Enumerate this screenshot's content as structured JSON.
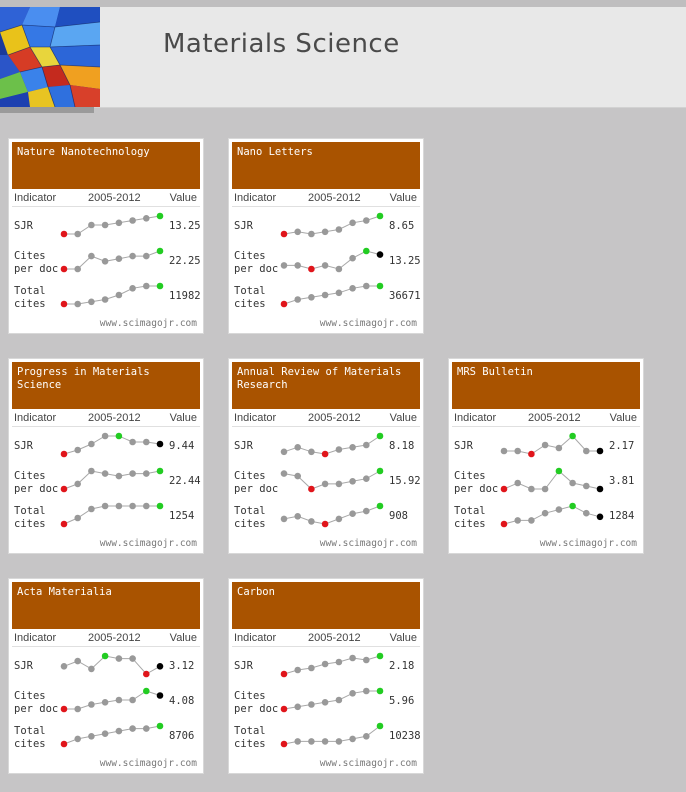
{
  "page": {
    "title": "Materials Science"
  },
  "columns": {
    "indicator": "Indicator",
    "period": "2005-2012",
    "value": "Value"
  },
  "row_labels": {
    "sjr": "SJR",
    "cites_line1": "Cites",
    "cites_line2": "per doc",
    "total_line1": "Total",
    "total_line2": "cites"
  },
  "footer": "www.scimagojr.com",
  "colors": {
    "header": "#a95300",
    "point": "#999999",
    "min": "#e0151b",
    "max": "#22cc22",
    "last": "#000000"
  },
  "journals": [
    {
      "name": "Nature Nanotechnology",
      "sjr": {
        "value": "13.25",
        "trend": [
          2,
          2,
          6,
          6,
          7,
          8,
          9,
          10
        ]
      },
      "cites": {
        "value": "22.25",
        "trend": [
          2,
          2,
          7,
          5,
          6,
          7,
          7,
          9
        ]
      },
      "total": {
        "value": "11982",
        "trend": [
          1,
          1,
          2,
          3,
          5,
          8,
          9,
          9
        ]
      }
    },
    {
      "name": "Nano Letters",
      "sjr": {
        "value": "8.65",
        "trend": [
          2,
          3,
          2,
          3,
          4,
          7,
          8,
          10
        ]
      },
      "cites": {
        "value": "13.25",
        "trend": [
          5,
          5,
          4,
          5,
          4,
          7,
          9,
          8
        ]
      },
      "total": {
        "value": "36671",
        "trend": [
          1,
          3,
          4,
          5,
          6,
          8,
          9,
          9
        ]
      }
    },
    {
      "name": "Progress in Materials Science",
      "sjr": {
        "value": "9.44",
        "trend": [
          1,
          3,
          6,
          10,
          10,
          7,
          7,
          6
        ]
      },
      "cites": {
        "value": "22.44",
        "trend": [
          1,
          3,
          8,
          7,
          6,
          7,
          7,
          8
        ]
      },
      "total": {
        "value": "1254",
        "trend": [
          1,
          3,
          6,
          7,
          7,
          7,
          7,
          7
        ]
      }
    },
    {
      "name": "Annual Review of Materials Research",
      "sjr": {
        "value": "8.18",
        "trend": [
          3,
          5,
          3,
          2,
          4,
          5,
          6,
          10
        ]
      },
      "cites": {
        "value": "15.92",
        "trend": [
          7,
          6,
          1,
          3,
          3,
          4,
          5,
          8
        ]
      },
      "total": {
        "value": "908",
        "trend": [
          4,
          5,
          3,
          2,
          4,
          6,
          7,
          9
        ]
      }
    },
    {
      "name": "MRS Bulletin",
      "sjr": {
        "value": "2.17",
        "trend": [
          3,
          3,
          2,
          5,
          4,
          8,
          3,
          3
        ]
      },
      "cites": {
        "value": "3.81",
        "trend": [
          4,
          6,
          4,
          4,
          10,
          6,
          5,
          4
        ]
      },
      "total": {
        "value": "1284",
        "trend": [
          1,
          2,
          2,
          4,
          5,
          6,
          4,
          3
        ]
      }
    },
    {
      "name": "Acta Materialia",
      "sjr": {
        "value": "3.12",
        "trend": [
          6,
          8,
          5,
          10,
          9,
          9,
          3,
          6
        ]
      },
      "cites": {
        "value": "4.08",
        "trend": [
          2,
          2,
          4,
          5,
          6,
          6,
          10,
          8
        ]
      },
      "total": {
        "value": "8706",
        "trend": [
          1,
          3,
          4,
          5,
          6,
          7,
          7,
          8
        ]
      }
    },
    {
      "name": "Carbon",
      "sjr": {
        "value": "2.18",
        "trend": [
          1,
          3,
          4,
          6,
          7,
          9,
          8,
          10
        ]
      },
      "cites": {
        "value": "5.96",
        "trend": [
          1,
          2,
          3,
          4,
          5,
          8,
          9,
          9
        ]
      },
      "total": {
        "value": "10238",
        "trend": [
          1,
          2,
          2,
          2,
          2,
          3,
          4,
          8
        ]
      }
    }
  ]
}
